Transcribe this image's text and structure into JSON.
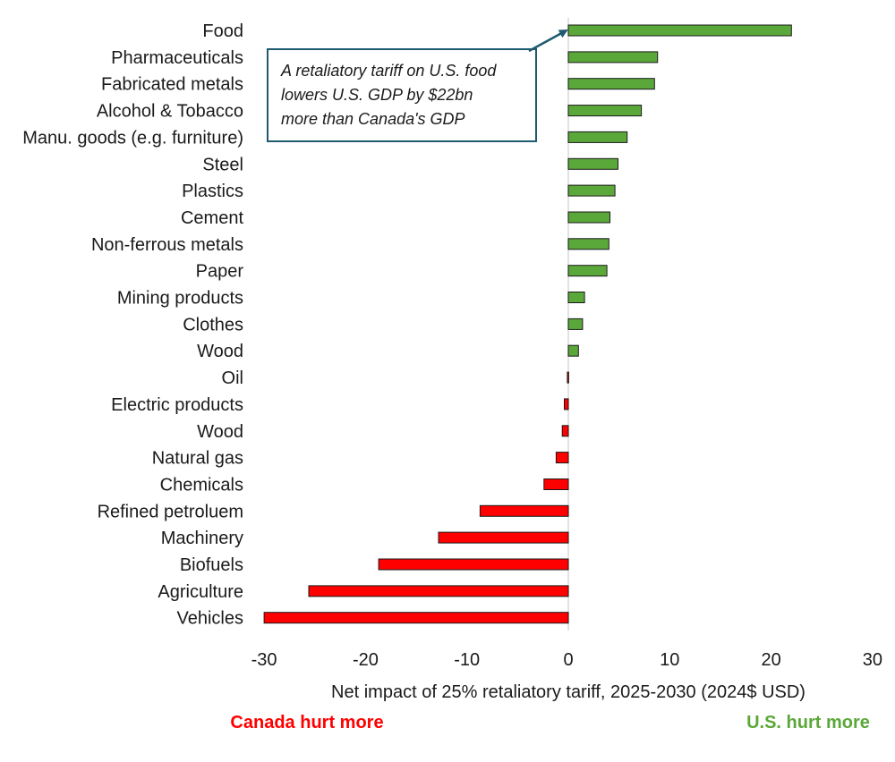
{
  "chart_data": {
    "type": "bar",
    "orientation": "horizontal",
    "categories": [
      "Food",
      "Pharmaceuticals",
      "Fabricated metals",
      "Alcohol & Tobacco",
      "Manu. goods (e.g. furniture)",
      "Steel",
      "Plastics",
      "Cement",
      "Non-ferrous metals",
      "Paper",
      "Mining products",
      "Clothes",
      "Wood",
      "Oil",
      "Electric products",
      "Wood",
      "Natural gas",
      "Chemicals",
      "Refined petroluem",
      "Machinery",
      "Biofuels",
      "Agriculture",
      "Vehicles"
    ],
    "values": [
      22.0,
      8.8,
      8.5,
      7.2,
      5.8,
      4.9,
      4.6,
      4.1,
      4.0,
      3.8,
      1.6,
      1.4,
      1.0,
      -0.1,
      -0.4,
      -0.6,
      -1.2,
      -2.4,
      -8.7,
      -12.8,
      -18.7,
      -25.6,
      -30.0
    ],
    "xlabel": "Net impact of 25% retaliatory tariff, 2025-2030 (2024$ USD)",
    "xlim": [
      -30,
      30
    ],
    "xticks": [
      "-30",
      "-20",
      "-10",
      "0",
      "10",
      "20",
      "30"
    ],
    "grid": false,
    "colors": {
      "positive": "#5ba83a",
      "negative": "#ff0000",
      "bar_edge": "#1a1a1a",
      "zero_line": "#d9d9d9"
    },
    "annotation": {
      "lines": [
        "A retaliatory tariff on U.S. food",
        "lowers U.S. GDP by $22bn",
        "more than Canada's GDP"
      ],
      "points_to": "Food",
      "border_color": "#1f5a70"
    },
    "side_labels": {
      "left": {
        "text": "Canada hurt more",
        "color": "#ff0000"
      },
      "right": {
        "text": "U.S. hurt more",
        "color": "#5ba83a"
      }
    }
  }
}
